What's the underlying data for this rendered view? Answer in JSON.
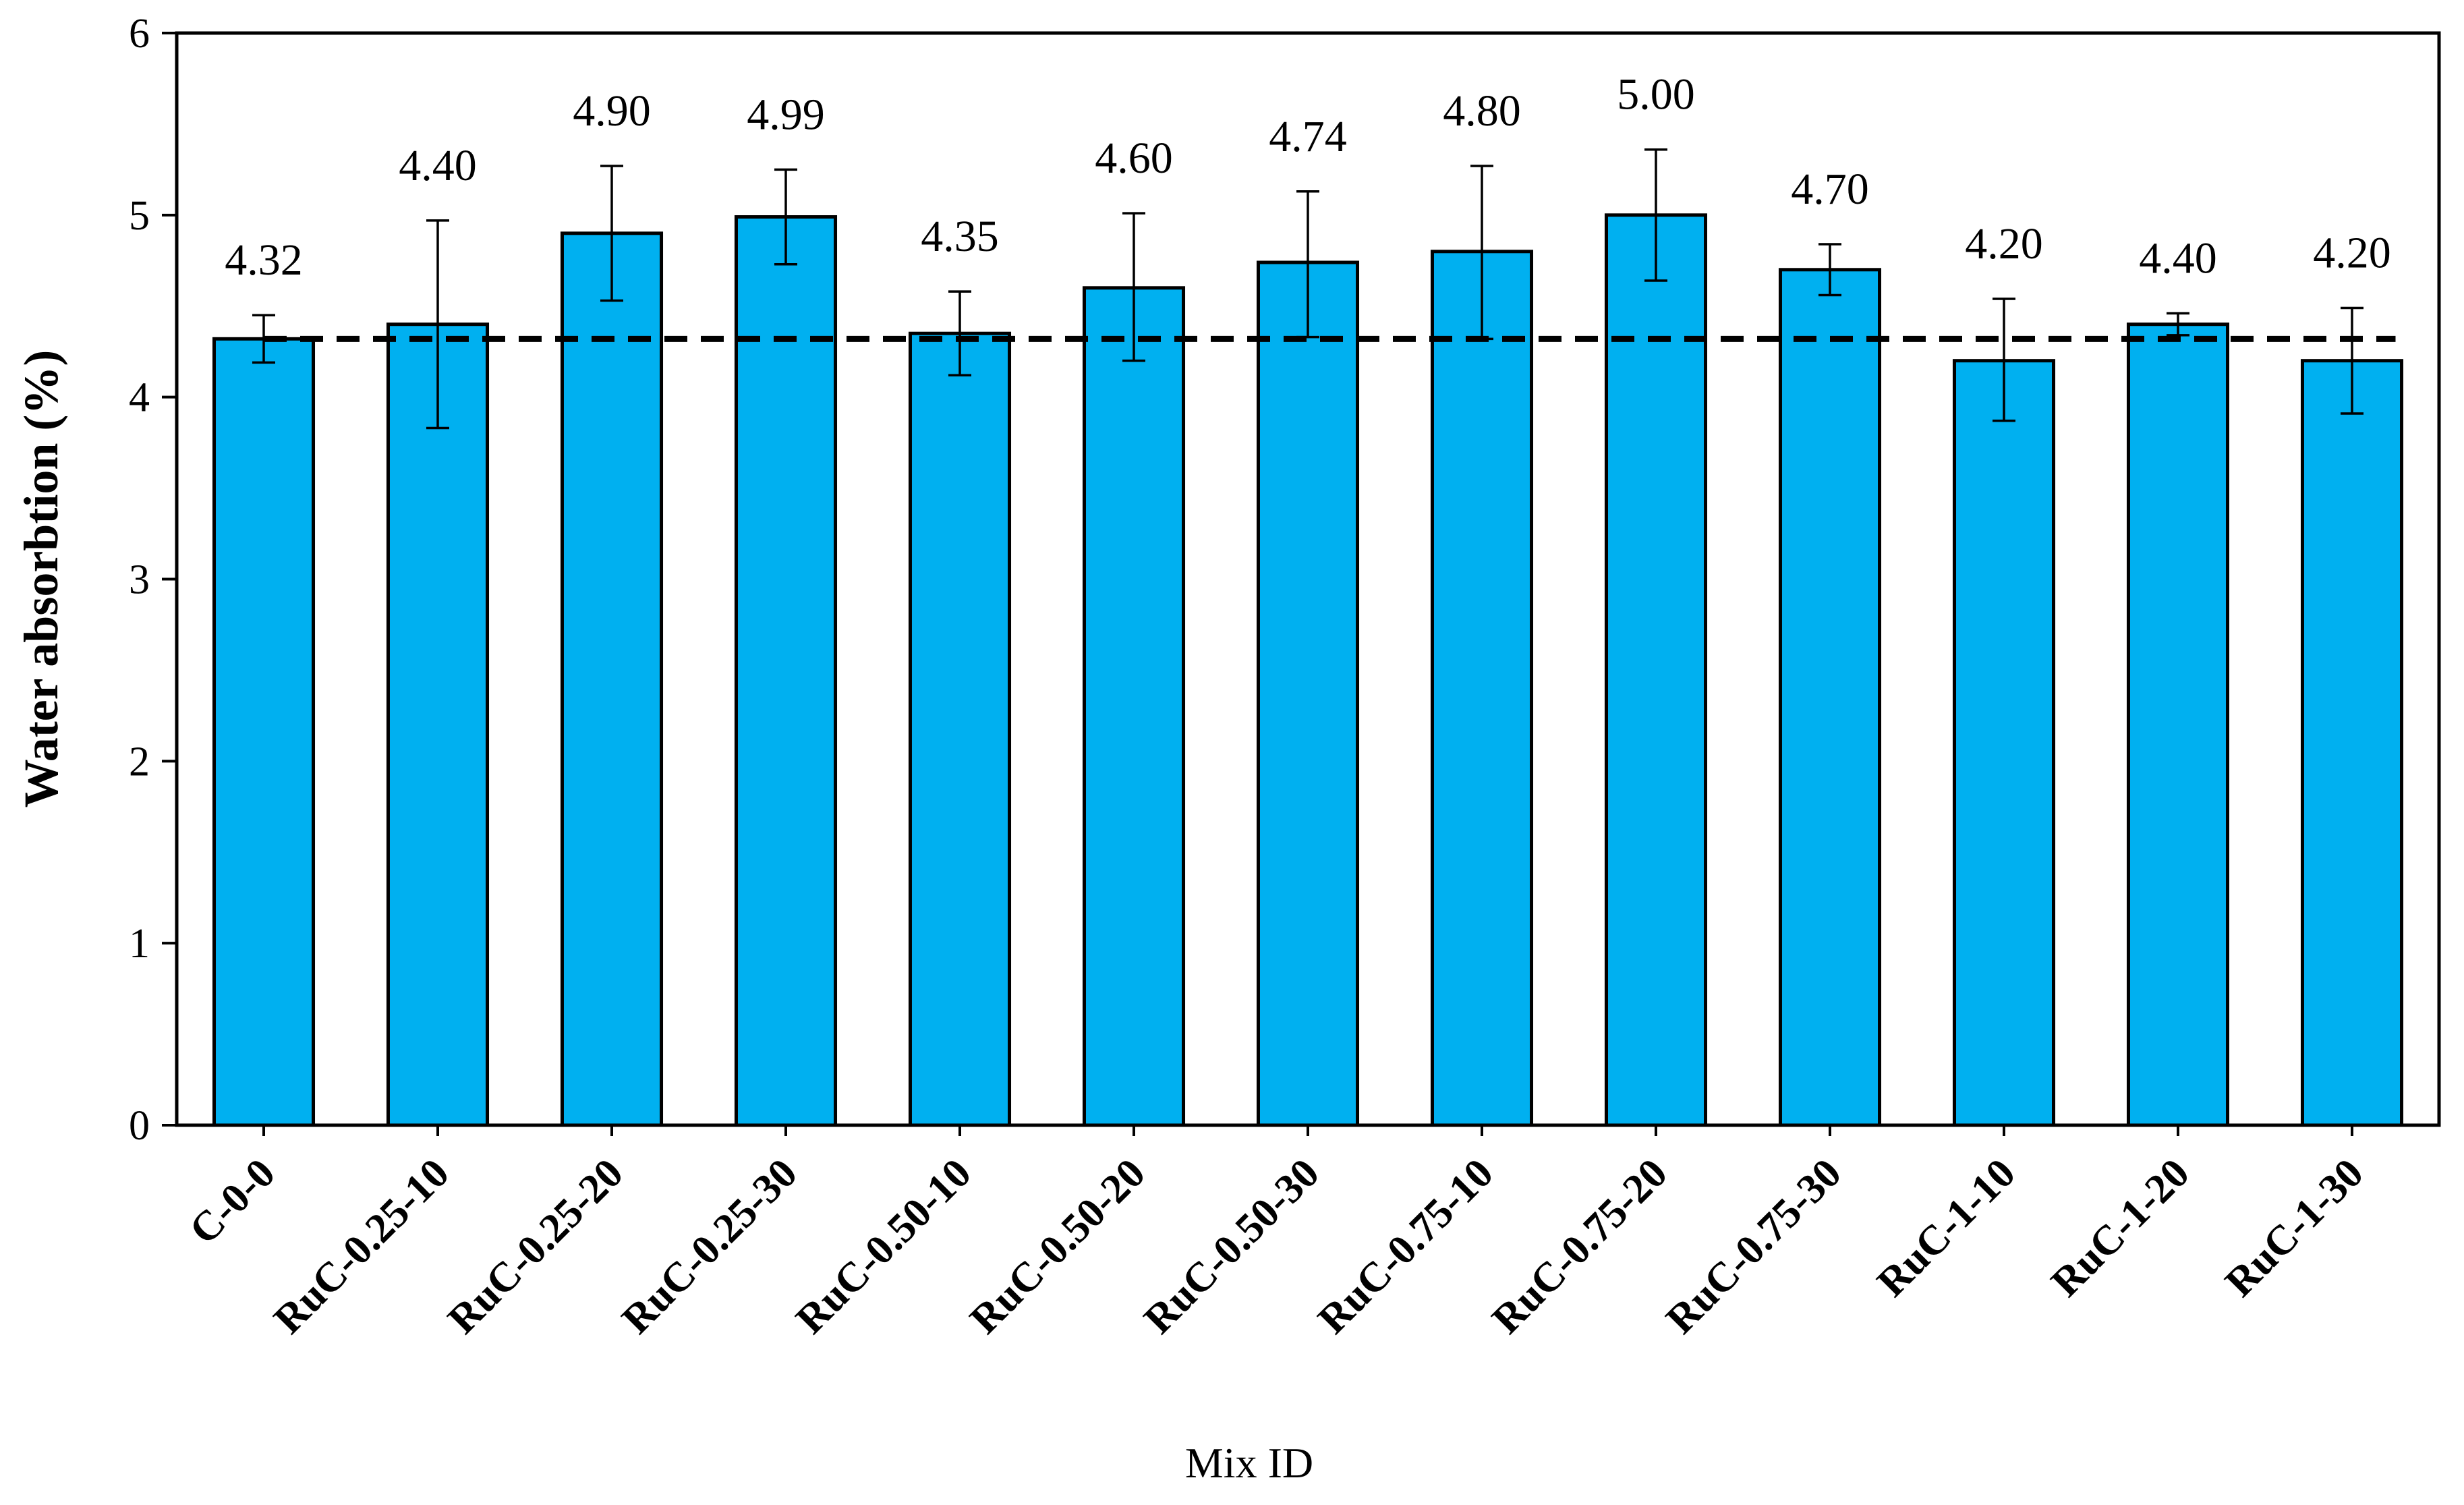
{
  "chart_data": {
    "type": "bar",
    "title": "",
    "xlabel": "Mix ID",
    "ylabel": "Water absorbtion (%)",
    "ylim": [
      0,
      6
    ],
    "yticks": [
      0,
      1,
      2,
      3,
      4,
      5,
      6
    ],
    "grid": false,
    "categories": [
      "C-0-0",
      "RuC-0.25-10",
      "RuC-0.25-20",
      "RuC-0.25-30",
      "RuC-0.50-10",
      "RuC-0.50-20",
      "RuC-0.50-30",
      "RuC-0.75-10",
      "RuC-0.75-20",
      "RuC-0.75-30",
      "RuC-1-10",
      "RuC-1-20",
      "RuC-1-30"
    ],
    "values": [
      4.32,
      4.4,
      4.9,
      4.99,
      4.35,
      4.6,
      4.74,
      4.8,
      5.0,
      4.7,
      4.2,
      4.4,
      4.2
    ],
    "value_labels": [
      "4.32",
      "4.40",
      "4.90",
      "4.99",
      "4.35",
      "4.60",
      "4.74",
      "4.80",
      "5.00",
      "4.70",
      "4.20",
      "4.40",
      "4.20"
    ],
    "error_low": [
      4.19,
      3.83,
      4.53,
      4.73,
      4.12,
      4.2,
      4.33,
      4.32,
      4.64,
      4.56,
      3.87,
      4.34,
      3.91
    ],
    "error_high": [
      4.45,
      4.97,
      5.27,
      5.25,
      4.58,
      5.01,
      5.13,
      5.27,
      5.36,
      4.84,
      4.54,
      4.46,
      4.49
    ],
    "reference_line": {
      "value": 4.32,
      "style": "dashed"
    },
    "colors": {
      "bar_fill": "#00B0F0",
      "bar_stroke": "#000000",
      "reference_line": "#000000"
    }
  }
}
